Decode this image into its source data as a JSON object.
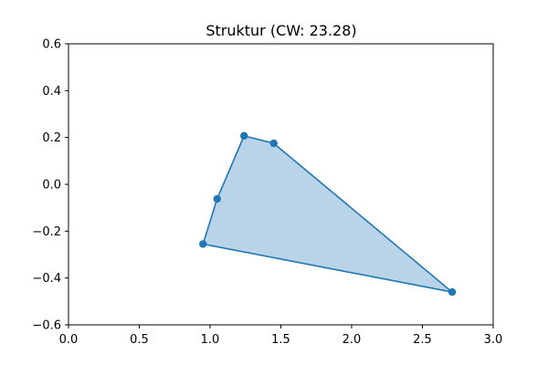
{
  "chart_data": {
    "type": "scatter",
    "title": "Struktur (CW: 23.28)",
    "xlabel": "",
    "ylabel": "",
    "xlim": [
      0.0,
      3.0
    ],
    "ylim": [
      -0.6,
      0.6
    ],
    "x_ticks": [
      0.0,
      0.5,
      1.0,
      1.5,
      2.0,
      2.5,
      3.0
    ],
    "x_tick_labels": [
      "0.0",
      "0.5",
      "1.0",
      "1.5",
      "2.0",
      "2.5",
      "3.0"
    ],
    "y_ticks": [
      -0.6,
      -0.4,
      -0.2,
      0.0,
      0.2,
      0.4,
      0.6
    ],
    "y_tick_labels": [
      "−0.6",
      "−0.4",
      "−0.2",
      "0.0",
      "0.2",
      "0.4",
      "0.6"
    ],
    "grid": false,
    "series": [
      {
        "points": [
          {
            "x": 0.95,
            "y": -0.255
          },
          {
            "x": 1.05,
            "y": -0.062
          },
          {
            "x": 1.24,
            "y": 0.207
          },
          {
            "x": 1.45,
            "y": 0.175
          },
          {
            "x": 2.71,
            "y": -0.46
          }
        ],
        "closed_polygon": true,
        "filled": true
      }
    ],
    "colors": {
      "line": "#1f77b4",
      "fill": "#b9d3e9",
      "axes": "#000000"
    }
  }
}
